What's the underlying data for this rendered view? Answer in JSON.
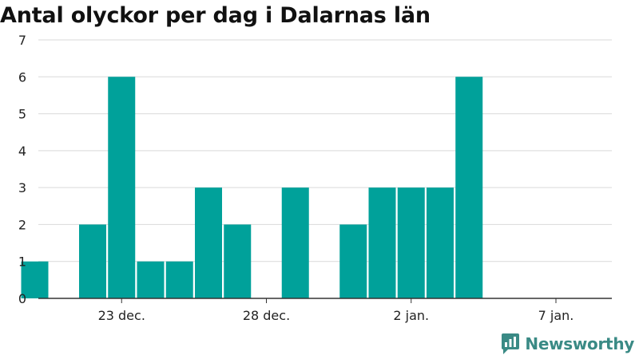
{
  "chart_data": {
    "type": "bar",
    "title": "Antal olyckor per dag i Dalarnas län",
    "xlabel": "",
    "ylabel": "",
    "ylim": [
      0,
      7
    ],
    "yticks": [
      0,
      1,
      2,
      3,
      4,
      5,
      6,
      7
    ],
    "grid": true,
    "legend": "none",
    "bar_color": "#00a19a",
    "x_ticks": [
      {
        "date": "2022-12-23",
        "label": "23 dec."
      },
      {
        "date": "2022-12-28",
        "label": "28 dec."
      },
      {
        "date": "2023-01-02",
        "label": "2 jan."
      },
      {
        "date": "2023-01-07",
        "label": "7 jan."
      }
    ],
    "x": [
      "2022-12-20",
      "2022-12-21",
      "2022-12-22",
      "2022-12-23",
      "2022-12-24",
      "2022-12-25",
      "2022-12-26",
      "2022-12-27",
      "2022-12-28",
      "2022-12-29",
      "2022-12-30",
      "2022-12-31",
      "2023-01-01",
      "2023-01-02",
      "2023-01-03",
      "2023-01-04",
      "2023-01-05",
      "2023-01-06",
      "2023-01-07"
    ],
    "values": [
      1,
      0,
      2,
      6,
      1,
      1,
      3,
      2,
      0,
      3,
      0,
      2,
      3,
      3,
      3,
      6,
      0,
      0,
      0
    ]
  },
  "branding": {
    "name": "Newsworthy",
    "color": "#3a8a85",
    "icon": "newsworthy-logo-icon"
  }
}
